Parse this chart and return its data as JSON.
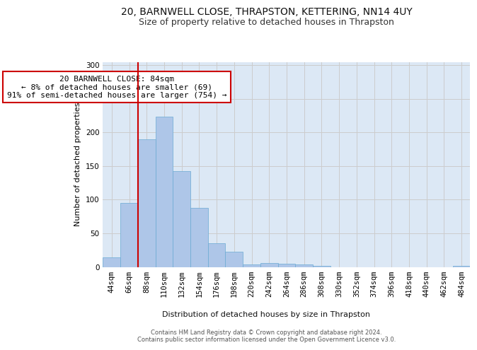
{
  "title1": "20, BARNWELL CLOSE, THRAPSTON, KETTERING, NN14 4UY",
  "title2": "Size of property relative to detached houses in Thrapston",
  "xlabel": "Distribution of detached houses by size in Thrapston",
  "ylabel": "Number of detached properties",
  "bins": [
    "44sqm",
    "66sqm",
    "88sqm",
    "110sqm",
    "132sqm",
    "154sqm",
    "176sqm",
    "198sqm",
    "220sqm",
    "242sqm",
    "264sqm",
    "286sqm",
    "308sqm",
    "330sqm",
    "352sqm",
    "374sqm",
    "396sqm",
    "418sqm",
    "440sqm",
    "462sqm",
    "484sqm"
  ],
  "values": [
    14,
    95,
    190,
    224,
    143,
    88,
    35,
    23,
    4,
    6,
    5,
    4,
    2,
    0,
    0,
    0,
    0,
    0,
    0,
    0,
    2
  ],
  "bar_color": "#aec6e8",
  "bar_edge_color": "#6aaad4",
  "annotation_text": "20 BARNWELL CLOSE: 84sqm\n← 8% of detached houses are smaller (69)\n91% of semi-detached houses are larger (754) →",
  "annotation_box_color": "#ffffff",
  "annotation_box_edge_color": "#cc0000",
  "ylim": [
    0,
    305
  ],
  "yticks": [
    0,
    50,
    100,
    150,
    200,
    250,
    300
  ],
  "footer_text": "Contains HM Land Registry data © Crown copyright and database right 2024.\nContains public sector information licensed under the Open Government Licence v3.0.",
  "grid_color": "#cccccc",
  "bg_color": "#dce8f5",
  "red_line_color": "#cc0000",
  "title_fontsize": 10,
  "subtitle_fontsize": 9,
  "axis_label_fontsize": 8,
  "tick_fontsize": 7.5,
  "footer_fontsize": 6,
  "annotation_fontsize": 8
}
